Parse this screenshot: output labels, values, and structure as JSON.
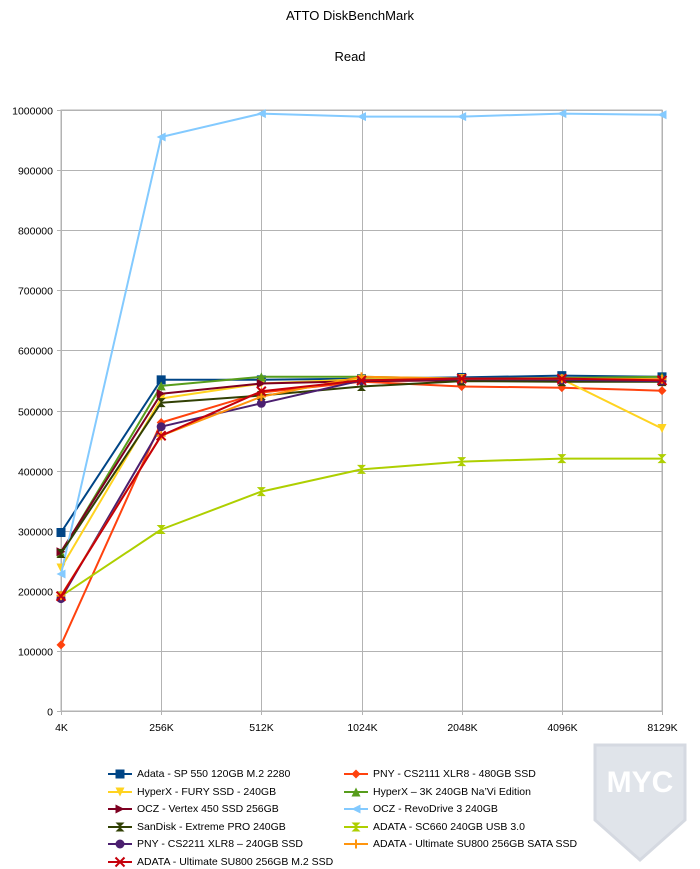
{
  "chart_data": {
    "type": "line",
    "title": "ATTO DiskBenchMark",
    "subtitle": "Read",
    "xlabel": "",
    "ylabel": "",
    "categories": [
      "4K",
      "256K",
      "512K",
      "1024K",
      "2048K",
      "4096K",
      "8129K"
    ],
    "ylim": [
      0,
      1000000
    ],
    "yticks": [
      0,
      100000,
      200000,
      300000,
      400000,
      500000,
      600000,
      700000,
      800000,
      900000,
      1000000
    ],
    "grid": true,
    "legend_position": "bottom",
    "series": [
      {
        "name": "Adata - SP 550 120GB M.2 2280",
        "color": "#004586",
        "marker": "square",
        "values": [
          297000,
          551000,
          551000,
          553000,
          555000,
          558000,
          556000
        ]
      },
      {
        "name": "PNY - CS2111 XLR8 - 480GB SSD",
        "color": "#ff420e",
        "marker": "diamond",
        "values": [
          110000,
          480000,
          530000,
          548000,
          540000,
          538000,
          533000
        ]
      },
      {
        "name": "HyperX - FURY SSD - 240GB",
        "color": "#ffd320",
        "marker": "triangle-down",
        "values": [
          238000,
          520000,
          545000,
          552000,
          553000,
          552000,
          470000
        ]
      },
      {
        "name": "HyperX – 3K 240GB Na’Vi Edition",
        "color": "#579d1c",
        "marker": "triangle-up",
        "values": [
          263000,
          541000,
          556000,
          556000,
          553000,
          554000,
          556000
        ]
      },
      {
        "name": "OCZ - Vertex 450 SSD 256GB",
        "color": "#7e0021",
        "marker": "triangle-right",
        "values": [
          265000,
          528000,
          545000,
          549000,
          550000,
          550000,
          552000
        ]
      },
      {
        "name": "OCZ - RevoDrive 3 240GB",
        "color": "#83caff",
        "marker": "triangle-left",
        "values": [
          228000,
          955000,
          994000,
          989000,
          989000,
          994000,
          992000
        ]
      },
      {
        "name": "SanDisk - Extreme PRO 240GB",
        "color": "#314004",
        "marker": "bowtie-h",
        "values": [
          262000,
          513000,
          525000,
          540000,
          549000,
          548000,
          548000
        ]
      },
      {
        "name": "ADATA - SC660 240GB USB 3.0",
        "color": "#aecf00",
        "marker": "bowtie-v",
        "values": [
          191000,
          302000,
          365000,
          402000,
          415000,
          420000,
          420000
        ]
      },
      {
        "name": "PNY - CS2211 XLR8 – 240GB SSD",
        "color": "#4b1f6f",
        "marker": "circle",
        "values": [
          187000,
          473000,
          512000,
          550000,
          552000,
          551000,
          549000
        ]
      },
      {
        "name": "ADATA - Ultimate SU800 256GB SATA SSD",
        "color": "#ff950e",
        "marker": "plus",
        "values": [
          192000,
          458000,
          523000,
          556000,
          553000,
          553000,
          552000
        ]
      },
      {
        "name": "ADATA - Ultimate SU800 256GB M.2 SSD",
        "color": "#c5000b",
        "marker": "x",
        "values": [
          191000,
          458000,
          532000,
          550000,
          553000,
          553000,
          550000
        ]
      }
    ]
  },
  "watermark": {
    "text": "MYC"
  }
}
